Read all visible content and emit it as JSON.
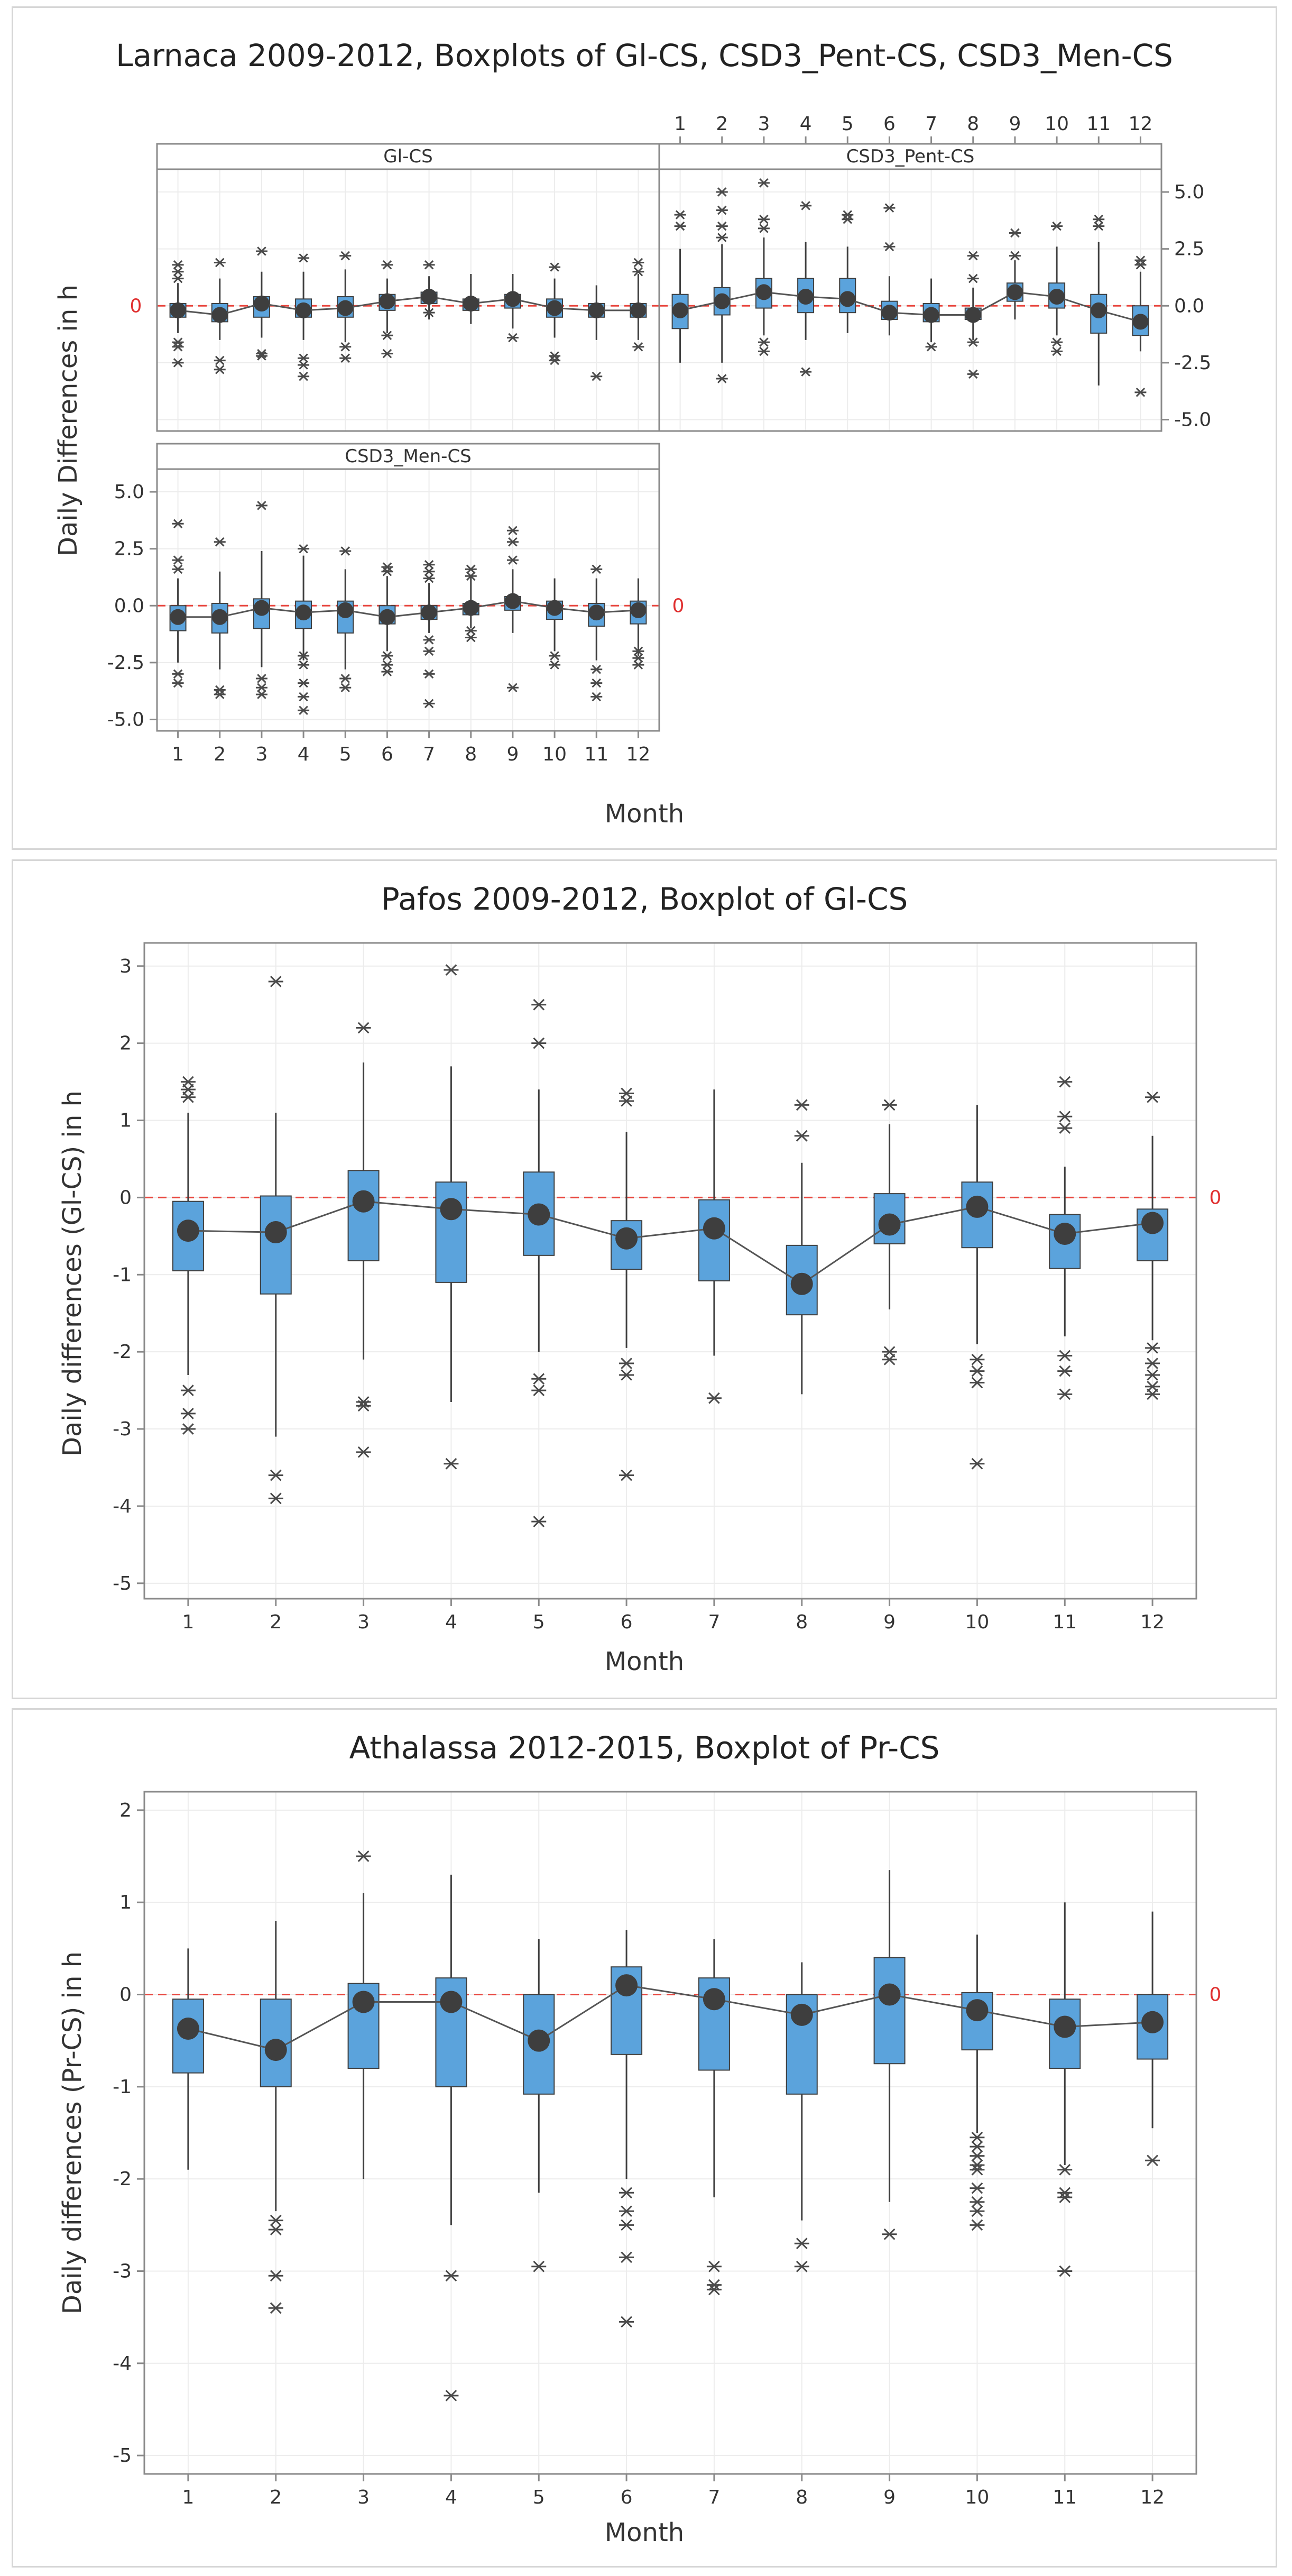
{
  "chart_data": [
    {
      "type": "boxplot",
      "title": "Larnaca 2009-2012, Boxplots of Gl-CS, CSD3_Pent-CS, CSD3_Men-CS",
      "xlabel": "Month",
      "ylabel": "Daily Differences in h",
      "ylim": [
        -5.5,
        6.0
      ],
      "yticks": [
        "5.0",
        "2.5",
        "0.0",
        "-2.5",
        "-5.0"
      ],
      "categories": [
        "1",
        "2",
        "3",
        "4",
        "5",
        "6",
        "7",
        "8",
        "9",
        "10",
        "11",
        "12"
      ],
      "reference_label": "0",
      "panels": [
        {
          "name": "Gl-CS",
          "mean": [
            -0.2,
            -0.4,
            0.1,
            -0.2,
            -0.1,
            0.2,
            0.4,
            0.1,
            0.3,
            -0.1,
            -0.2,
            -0.2
          ],
          "q1": [
            -0.5,
            -0.7,
            -0.5,
            -0.5,
            -0.5,
            -0.2,
            0.1,
            -0.2,
            -0.1,
            -0.5,
            -0.5,
            -0.5
          ],
          "q3": [
            0.1,
            0.1,
            0.4,
            0.3,
            0.4,
            0.5,
            0.6,
            0.3,
            0.5,
            0.3,
            0.1,
            0.1
          ],
          "whisker_low": [
            -1.2,
            -1.5,
            -1.4,
            -1.5,
            -1.6,
            -1.2,
            -0.6,
            -0.8,
            -1.0,
            -1.4,
            -1.5,
            -1.5
          ],
          "whisker_high": [
            1.0,
            1.2,
            1.5,
            1.5,
            1.6,
            1.2,
            1.3,
            1.4,
            1.4,
            1.2,
            0.9,
            1.4
          ],
          "outliers": [
            [
              1.8,
              1.5,
              1.2,
              -1.6,
              -1.8,
              -2.5
            ],
            [
              1.9,
              -2.4,
              -2.8
            ],
            [
              2.4,
              -2.1,
              -2.2
            ],
            [
              2.1,
              -2.3,
              -2.6,
              -3.1
            ],
            [
              2.2,
              -1.8,
              -2.3
            ],
            [
              1.8,
              -1.3,
              -2.1
            ],
            [
              1.8,
              -0.3
            ],
            [],
            [
              -1.4
            ],
            [
              1.7,
              -2.2,
              -2.4
            ],
            [
              -3.1
            ],
            [
              1.9,
              1.5,
              -1.8
            ]
          ]
        },
        {
          "name": "CSD3_Pent-CS",
          "mean": [
            -0.2,
            0.2,
            0.6,
            0.4,
            0.3,
            -0.3,
            -0.4,
            -0.4,
            0.6,
            0.4,
            -0.2,
            -0.7
          ],
          "q1": [
            -1.0,
            -0.4,
            -0.1,
            -0.3,
            -0.3,
            -0.6,
            -0.7,
            -0.6,
            0.2,
            -0.1,
            -1.2,
            -1.3
          ],
          "q3": [
            0.5,
            0.8,
            1.2,
            1.2,
            1.2,
            0.2,
            0.1,
            -0.1,
            1.0,
            1.0,
            0.5,
            0.0
          ],
          "whisker_low": [
            -2.5,
            -2.5,
            -1.3,
            -1.5,
            -1.2,
            -1.3,
            -1.6,
            -1.5,
            -0.6,
            -1.3,
            -3.5,
            -2.0
          ],
          "whisker_high": [
            2.5,
            2.7,
            3.0,
            2.8,
            2.6,
            1.3,
            1.2,
            0.8,
            2.0,
            2.6,
            2.8,
            1.5
          ],
          "outliers": [
            [
              4.0,
              3.5
            ],
            [
              5.0,
              4.2,
              3.5,
              3.0,
              -3.2
            ],
            [
              5.4,
              3.8,
              3.4,
              -1.6,
              -2.0
            ],
            [
              4.4,
              -2.9
            ],
            [
              4.0,
              3.8
            ],
            [
              4.3,
              2.6
            ],
            [
              -1.8
            ],
            [
              2.2,
              1.2,
              -1.6,
              -3.0
            ],
            [
              3.2,
              2.2
            ],
            [
              3.5,
              -1.6,
              -2.0
            ],
            [
              3.8,
              3.5
            ],
            [
              2.0,
              1.8,
              -3.8
            ]
          ]
        },
        {
          "name": "CSD3_Men-CS",
          "mean": [
            -0.5,
            -0.5,
            -0.1,
            -0.3,
            -0.2,
            -0.5,
            -0.3,
            -0.1,
            0.2,
            -0.1,
            -0.3,
            -0.2
          ],
          "q1": [
            -1.1,
            -1.2,
            -1.0,
            -1.0,
            -1.2,
            -0.8,
            -0.6,
            -0.4,
            -0.2,
            -0.6,
            -0.9,
            -0.8
          ],
          "q3": [
            0.0,
            0.1,
            0.3,
            0.2,
            0.2,
            0.0,
            0.0,
            0.1,
            0.4,
            0.2,
            0.1,
            0.2
          ],
          "whisker_low": [
            -2.5,
            -2.8,
            -2.7,
            -2.4,
            -2.8,
            -2.0,
            -1.2,
            -1.0,
            -1.2,
            -2.0,
            -2.4,
            -2.2
          ],
          "whisker_high": [
            1.2,
            1.5,
            2.4,
            2.2,
            1.6,
            1.3,
            1.0,
            1.3,
            1.6,
            1.2,
            1.2,
            1.2
          ],
          "outliers": [
            [
              3.6,
              2.0,
              1.6,
              -3.0,
              -3.4
            ],
            [
              2.8,
              -3.7,
              -3.9
            ],
            [
              4.4,
              -3.2,
              -3.6,
              -3.9
            ],
            [
              2.5,
              -2.2,
              -2.6,
              -3.4,
              -4.0,
              -4.6
            ],
            [
              2.4,
              -3.2,
              -3.6
            ],
            [
              1.7,
              1.5,
              -2.2,
              -2.6,
              -2.9
            ],
            [
              1.8,
              1.5,
              1.2,
              -1.5,
              -2.0,
              -3.0,
              -4.3
            ],
            [
              1.6,
              1.3,
              -1.1,
              -1.4
            ],
            [
              3.3,
              2.8,
              2.0,
              -3.6
            ],
            [
              -2.2,
              -2.6
            ],
            [
              1.6,
              -2.8,
              -3.4,
              -4.0
            ],
            [
              -2.0,
              -2.3,
              -2.6
            ]
          ]
        }
      ]
    },
    {
      "type": "boxplot",
      "title": "Pafos 2009-2012, Boxplot of Gl-CS",
      "xlabel": "Month",
      "ylabel": "Daily differences (Gl-CS) in h",
      "ylim": [
        -5.2,
        3.3
      ],
      "yticks": [
        "3",
        "2",
        "1",
        "0",
        "-1",
        "-2",
        "-3",
        "-4",
        "-5"
      ],
      "categories": [
        "1",
        "2",
        "3",
        "4",
        "5",
        "6",
        "7",
        "8",
        "9",
        "10",
        "11",
        "12"
      ],
      "reference_label": "0",
      "series": {
        "mean": [
          -0.43,
          -0.45,
          -0.05,
          -0.15,
          -0.22,
          -0.53,
          -0.4,
          -1.12,
          -0.35,
          -0.12,
          -0.47,
          -0.33
        ],
        "q1": [
          -0.95,
          -1.25,
          -0.82,
          -1.1,
          -0.75,
          -0.93,
          -1.08,
          -1.52,
          -0.6,
          -0.65,
          -0.92,
          -0.82
        ],
        "q3": [
          -0.05,
          0.02,
          0.35,
          0.2,
          0.33,
          -0.3,
          -0.03,
          -0.62,
          0.05,
          0.2,
          -0.22,
          -0.15
        ],
        "whisker_low": [
          -2.3,
          -3.1,
          -2.1,
          -2.65,
          -2.0,
          -1.95,
          -2.05,
          -2.55,
          -1.45,
          -1.9,
          -1.8,
          -1.85
        ],
        "whisker_high": [
          1.1,
          1.1,
          1.75,
          1.7,
          1.4,
          0.85,
          1.4,
          0.45,
          0.95,
          1.2,
          0.4,
          0.8
        ],
        "outliers": [
          [
            1.5,
            1.4,
            1.3,
            -2.5,
            -2.8,
            -3.0
          ],
          [
            2.8,
            -3.6,
            -3.9
          ],
          [
            2.2,
            -2.65,
            -2.7,
            -3.3
          ],
          [
            2.95,
            -3.45
          ],
          [
            2.5,
            2.0,
            -2.35,
            -2.5,
            -4.2
          ],
          [
            1.35,
            1.25,
            -2.15,
            -2.3,
            -3.6
          ],
          [
            -2.6
          ],
          [
            1.2,
            0.8
          ],
          [
            1.2,
            -2.0,
            -2.1
          ],
          [
            -2.1,
            -2.25,
            -2.4,
            -3.45
          ],
          [
            1.5,
            1.05,
            0.9,
            -2.05,
            -2.25,
            -2.55
          ],
          [
            1.3,
            -1.95,
            -2.15,
            -2.3,
            -2.45,
            -2.55
          ]
        ]
      }
    },
    {
      "type": "boxplot",
      "title": "Athalassa 2012-2015, Boxplot of Pr-CS",
      "xlabel": "Month",
      "ylabel": "Daily differences (Pr-CS) in h",
      "ylim": [
        -5.2,
        2.2
      ],
      "yticks": [
        "2",
        "1",
        "0",
        "-1",
        "-2",
        "-3",
        "-4",
        "-5"
      ],
      "categories": [
        "1",
        "2",
        "3",
        "4",
        "5",
        "6",
        "7",
        "8",
        "9",
        "10",
        "11",
        "12"
      ],
      "reference_label": "0",
      "series": {
        "mean": [
          -0.37,
          -0.6,
          -0.08,
          -0.08,
          -0.5,
          0.1,
          -0.05,
          -0.22,
          0.0,
          -0.17,
          -0.35,
          -0.3
        ],
        "q1": [
          -0.85,
          -1.0,
          -0.8,
          -1.0,
          -1.08,
          -0.65,
          -0.82,
          -1.08,
          -0.75,
          -0.6,
          -0.8,
          -0.7
        ],
        "q3": [
          -0.05,
          -0.05,
          0.12,
          0.18,
          0.0,
          0.3,
          0.18,
          0.0,
          0.4,
          0.02,
          -0.05,
          0.0
        ],
        "whisker_low": [
          -1.9,
          -2.35,
          -2.0,
          -2.5,
          -2.15,
          -2.0,
          -2.2,
          -2.45,
          -2.25,
          -1.5,
          -1.85,
          -1.45
        ],
        "whisker_high": [
          0.5,
          0.8,
          1.1,
          1.3,
          0.6,
          0.7,
          0.6,
          0.35,
          1.35,
          0.65,
          1.0,
          0.9
        ],
        "outliers": [
          [],
          [
            -2.45,
            -2.55,
            -3.05,
            -3.4
          ],
          [
            1.5
          ],
          [
            -3.05,
            -4.35
          ],
          [
            -2.95
          ],
          [
            -2.15,
            -2.35,
            -2.5,
            -2.85,
            -3.55
          ],
          [
            -2.95,
            -3.15,
            -3.2
          ],
          [
            -2.7,
            -2.95
          ],
          [
            -2.6
          ],
          [
            -1.55,
            -1.65,
            -1.75,
            -1.85,
            -1.9,
            -2.1,
            -2.25,
            -2.35,
            -2.5
          ],
          [
            -1.9,
            -2.15,
            -2.2,
            -3.0
          ],
          [
            -1.8
          ]
        ]
      }
    }
  ]
}
